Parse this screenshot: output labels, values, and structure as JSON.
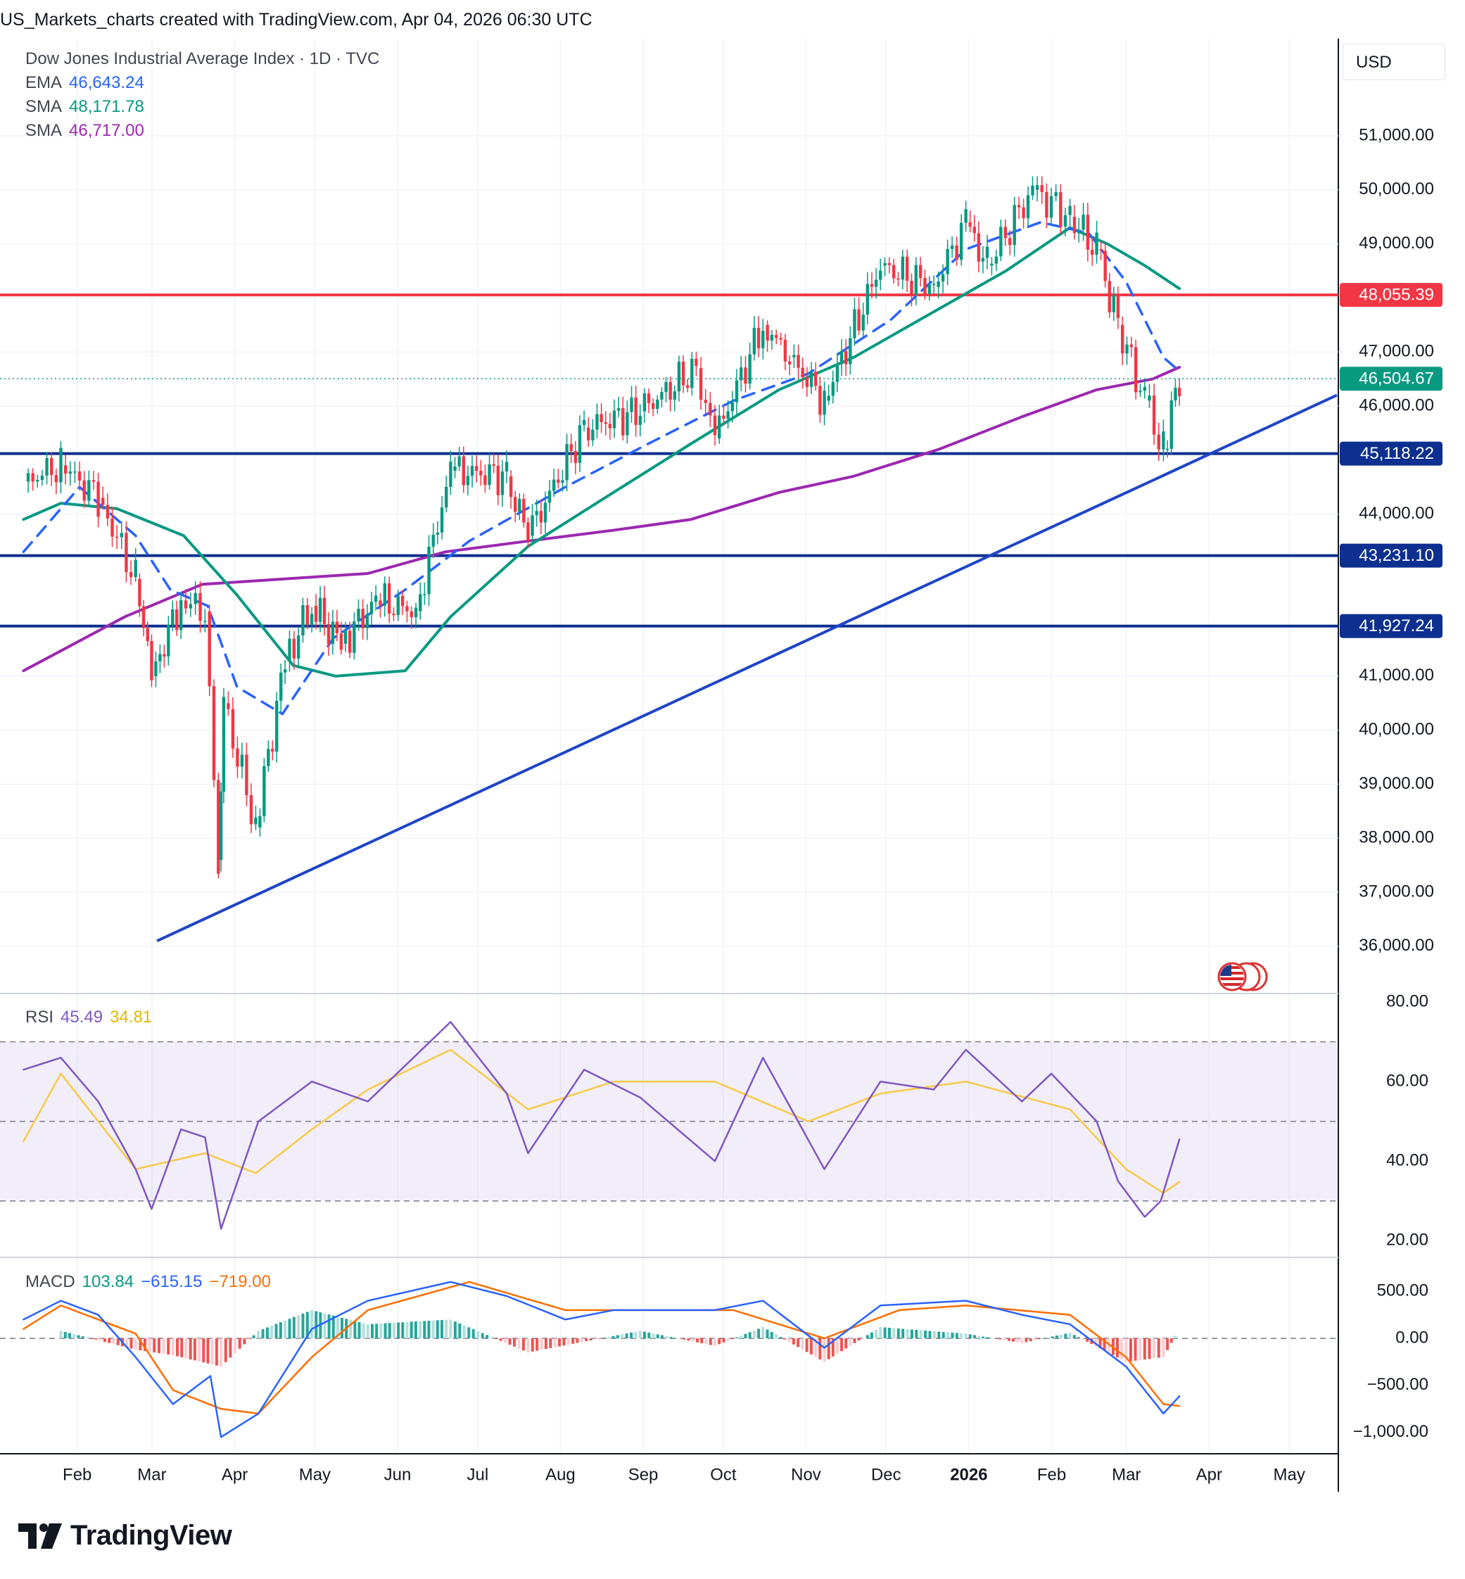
{
  "header": {
    "title": "US_Markets_charts created with TradingView.com, Apr 04, 2026 06:30 UTC"
  },
  "main_legend": {
    "symbol": "Dow Jones Industrial Average Index · 1D · TVC",
    "ema_label": "EMA",
    "ema_value": "46,643.24",
    "ema_color": "#2962ff",
    "sma1_label": "SMA",
    "sma1_value": "48,171.78",
    "sma1_color": "#089981",
    "sma2_label": "SMA",
    "sma2_value": "46,717.00",
    "sma2_color": "#9c27b0"
  },
  "currency": "USD",
  "rsi_legend": {
    "label": "RSI",
    "value": "45.49",
    "ma_value": "34.81",
    "color": "#7e57c2",
    "ma_color": "#f7c948"
  },
  "macd_legend": {
    "label": "MACD",
    "hist": "103.84",
    "macd": "−615.15",
    "signal": "−719.00",
    "hist_color": "#089981",
    "macd_color": "#2962ff",
    "signal_color": "#ff6d00"
  },
  "branding": {
    "logo_text": "TradingView"
  },
  "chart_data": [
    {
      "type": "line",
      "title": "Dow Jones Industrial Average Index · 1D · TVC",
      "x_ticks": [
        "Feb",
        "Mar",
        "Apr",
        "May",
        "Jun",
        "Jul",
        "Aug",
        "Sep",
        "Oct",
        "Nov",
        "Dec",
        "2026",
        "Feb",
        "Mar",
        "Apr",
        "May"
      ],
      "y_ticks": [
        "36,000.00",
        "37,000.00",
        "38,000.00",
        "39,000.00",
        "40,000.00",
        "41,000.00",
        "44,000.00",
        "46,000.00",
        "47,000.00",
        "49,000.00",
        "50,000.00",
        "51,000.00"
      ],
      "ylim": [
        35200,
        52000
      ],
      "price_series": {
        "name": "Dow Jones Industrial Average Index",
        "dates": [
          "2025-01-24",
          "2025-02-07",
          "2025-02-21",
          "2025-03-07",
          "2025-03-13",
          "2025-03-24",
          "2025-04-02",
          "2025-04-07",
          "2025-04-09",
          "2025-04-21",
          "2025-05-02",
          "2025-05-12",
          "2025-05-23",
          "2025-06-05",
          "2025-06-20",
          "2025-07-03",
          "2025-07-24",
          "2025-08-01",
          "2025-08-22",
          "2025-09-12",
          "2025-10-03",
          "2025-10-10",
          "2025-10-28",
          "2025-11-07",
          "2025-11-20",
          "2025-12-11",
          "2025-12-31",
          "2026-01-12",
          "2026-01-20",
          "2026-02-06",
          "2026-02-20",
          "2026-03-02",
          "2026-03-10",
          "2026-03-20",
          "2026-03-27",
          "2026-04-02"
        ],
        "values": [
          44600,
          44900,
          44300,
          42800,
          41000,
          42400,
          42200,
          37600,
          40500,
          38200,
          41300,
          42300,
          41600,
          42400,
          42200,
          44800,
          44700,
          43600,
          45600,
          45900,
          46700,
          45400,
          47500,
          46900,
          46100,
          48600,
          48200,
          49400,
          48600,
          50000,
          49500,
          48900,
          47500,
          46100,
          45200,
          46504.67
        ]
      },
      "ema": {
        "name": "EMA",
        "dates": [
          "2025-01-24",
          "2025-02-14",
          "2025-03-07",
          "2025-03-20",
          "2025-04-03",
          "2025-04-14",
          "2025-05-01",
          "2025-05-20",
          "2025-06-16",
          "2025-07-10",
          "2025-08-15",
          "2025-09-15",
          "2025-10-17",
          "2025-11-14",
          "2025-12-15",
          "2026-01-12",
          "2026-02-09",
          "2026-02-27",
          "2026-03-13",
          "2026-03-27",
          "2026-04-02"
        ],
        "values": [
          43300,
          44500,
          43600,
          42600,
          42300,
          40800,
          40300,
          41700,
          42600,
          43500,
          44500,
          45300,
          46100,
          46600,
          47600,
          48900,
          49400,
          49200,
          48300,
          46900,
          46643.24
        ]
      },
      "sma1": {
        "name": "SMA",
        "dates": [
          "2025-01-24",
          "2025-02-07",
          "2025-02-28",
          "2025-03-25",
          "2025-04-14",
          "2025-05-05",
          "2025-05-21",
          "2025-06-16",
          "2025-07-03",
          "2025-08-01",
          "2025-09-02",
          "2025-10-01",
          "2025-11-03",
          "2025-12-01",
          "2026-01-02",
          "2026-01-27",
          "2026-02-20",
          "2026-03-06",
          "2026-03-20",
          "2026-04-02"
        ],
        "values": [
          43900,
          44200,
          44100,
          43600,
          42500,
          41200,
          41000,
          41100,
          42100,
          43400,
          44400,
          45300,
          46300,
          46900,
          47800,
          48500,
          49300,
          49000,
          48600,
          48171.78
        ]
      },
      "sma2": {
        "name": "SMA",
        "dates": [
          "2025-01-24",
          "2025-03-03",
          "2025-04-01",
          "2025-06-02",
          "2025-07-01",
          "2025-08-01",
          "2025-09-02",
          "2025-10-01",
          "2025-11-03",
          "2025-12-01",
          "2026-01-02",
          "2026-02-02",
          "2026-03-02",
          "2026-03-23",
          "2026-04-02"
        ],
        "values": [
          41100,
          42100,
          42700,
          42900,
          43300,
          43500,
          43700,
          43900,
          44400,
          44700,
          45200,
          45800,
          46300,
          46500,
          46717.0
        ]
      },
      "horizontal_levels": [
        {
          "value": 48055.39,
          "label": "48,055.39",
          "color": "#f23645"
        },
        {
          "value": 45118.22,
          "label": "45,118.22",
          "color": "#0d2f8f"
        },
        {
          "value": 43231.1,
          "label": "43,231.10",
          "color": "#0d2f8f"
        },
        {
          "value": 41927.24,
          "label": "41,927.24",
          "color": "#0d2f8f"
        }
      ],
      "last_price": {
        "value": 46504.67,
        "label": "46,504.67",
        "color": "#089981"
      },
      "trendline": {
        "start": {
          "date": "2025-03-15",
          "value": 36100
        },
        "end": {
          "date": "2026-05-31",
          "value": 46200
        },
        "color": "#1e45c8"
      }
    },
    {
      "type": "line",
      "title": "RSI",
      "y_ticks": [
        "20.00",
        "40.00",
        "60.00",
        "80.00"
      ],
      "ylim": [
        19,
        82
      ],
      "bands": {
        "upper": 70,
        "middle": 50,
        "lower": 30
      },
      "rsi": {
        "name": "RSI",
        "dates": [
          "2025-01-24",
          "2025-02-07",
          "2025-02-21",
          "2025-03-07",
          "2025-03-13",
          "2025-03-24",
          "2025-04-02",
          "2025-04-08",
          "2025-04-22",
          "2025-05-12",
          "2025-06-02",
          "2025-07-03",
          "2025-07-24",
          "2025-08-01",
          "2025-08-22",
          "2025-09-12",
          "2025-10-10",
          "2025-10-28",
          "2025-11-20",
          "2025-12-11",
          "2025-12-31",
          "2026-01-12",
          "2026-02-02",
          "2026-02-13",
          "2026-03-02",
          "2026-03-10",
          "2026-03-20",
          "2026-03-26",
          "2026-04-02"
        ],
        "values": [
          63,
          66,
          55,
          38,
          28,
          48,
          46,
          23,
          50,
          60,
          55,
          75,
          57,
          42,
          63,
          56,
          40,
          66,
          38,
          60,
          58,
          68,
          55,
          62,
          50,
          35,
          26,
          30,
          45.49
        ]
      },
      "rsi_ma": {
        "name": "RSI MA",
        "dates": [
          "2025-01-24",
          "2025-02-07",
          "2025-03-07",
          "2025-04-02",
          "2025-04-21",
          "2025-05-12",
          "2025-06-02",
          "2025-07-03",
          "2025-08-01",
          "2025-09-02",
          "2025-10-10",
          "2025-11-14",
          "2025-12-11",
          "2026-01-12",
          "2026-02-20",
          "2026-03-13",
          "2026-03-27",
          "2026-04-02"
        ],
        "values": [
          45,
          62,
          38,
          42,
          37,
          48,
          58,
          68,
          53,
          60,
          60,
          50,
          57,
          60,
          53,
          38,
          32,
          34.81
        ]
      }
    },
    {
      "type": "bar",
      "title": "MACD",
      "y_ticks": [
        "−1,000.00",
        "−500.00",
        "0.00",
        "500.00"
      ],
      "ylim": [
        -1150,
        700
      ],
      "macd": {
        "name": "MACD",
        "dates": [
          "2025-01-24",
          "2025-02-07",
          "2025-02-21",
          "2025-03-07",
          "2025-03-21",
          "2025-04-04",
          "2025-04-08",
          "2025-04-22",
          "2025-05-12",
          "2025-06-02",
          "2025-07-03",
          "2025-07-24",
          "2025-08-15",
          "2025-09-02",
          "2025-10-10",
          "2025-10-28",
          "2025-11-20",
          "2025-12-11",
          "2026-01-12",
          "2026-02-02",
          "2026-02-20",
          "2026-03-13",
          "2026-03-27",
          "2026-04-02"
        ],
        "values": [
          200,
          400,
          250,
          -200,
          -700,
          -400,
          -1050,
          -800,
          100,
          400,
          600,
          450,
          200,
          300,
          300,
          400,
          -100,
          350,
          400,
          250,
          150,
          -300,
          -800,
          -615.15
        ]
      },
      "signal": {
        "name": "Signal",
        "dates": [
          "2025-01-24",
          "2025-02-07",
          "2025-03-07",
          "2025-03-21",
          "2025-04-08",
          "2025-04-22",
          "2025-05-12",
          "2025-06-02",
          "2025-07-10",
          "2025-08-15",
          "2025-09-12",
          "2025-10-17",
          "2025-11-20",
          "2025-12-18",
          "2026-01-12",
          "2026-02-20",
          "2026-03-13",
          "2026-03-27",
          "2026-04-02"
        ],
        "values": [
          100,
          350,
          50,
          -550,
          -750,
          -800,
          -200,
          300,
          600,
          300,
          300,
          300,
          0,
          300,
          350,
          250,
          -200,
          -700,
          -719.0
        ]
      },
      "histogram": {
        "name": "Histogram",
        "dates": [
          "2025-02-07",
          "2025-03-07",
          "2025-03-21",
          "2025-04-08",
          "2025-04-22",
          "2025-05-12",
          "2025-06-02",
          "2025-07-03",
          "2025-08-01",
          "2025-09-12",
          "2025-10-10",
          "2025-10-28",
          "2025-11-20",
          "2025-12-11",
          "2026-01-12",
          "2026-02-02",
          "2026-02-20",
          "2026-03-13",
          "2026-03-27",
          "2026-04-02"
        ],
        "values": [
          80,
          -120,
          -180,
          -300,
          80,
          300,
          150,
          200,
          -150,
          80,
          -80,
          120,
          -250,
          120,
          50,
          -50,
          60,
          -250,
          -200,
          103.84
        ]
      }
    }
  ]
}
